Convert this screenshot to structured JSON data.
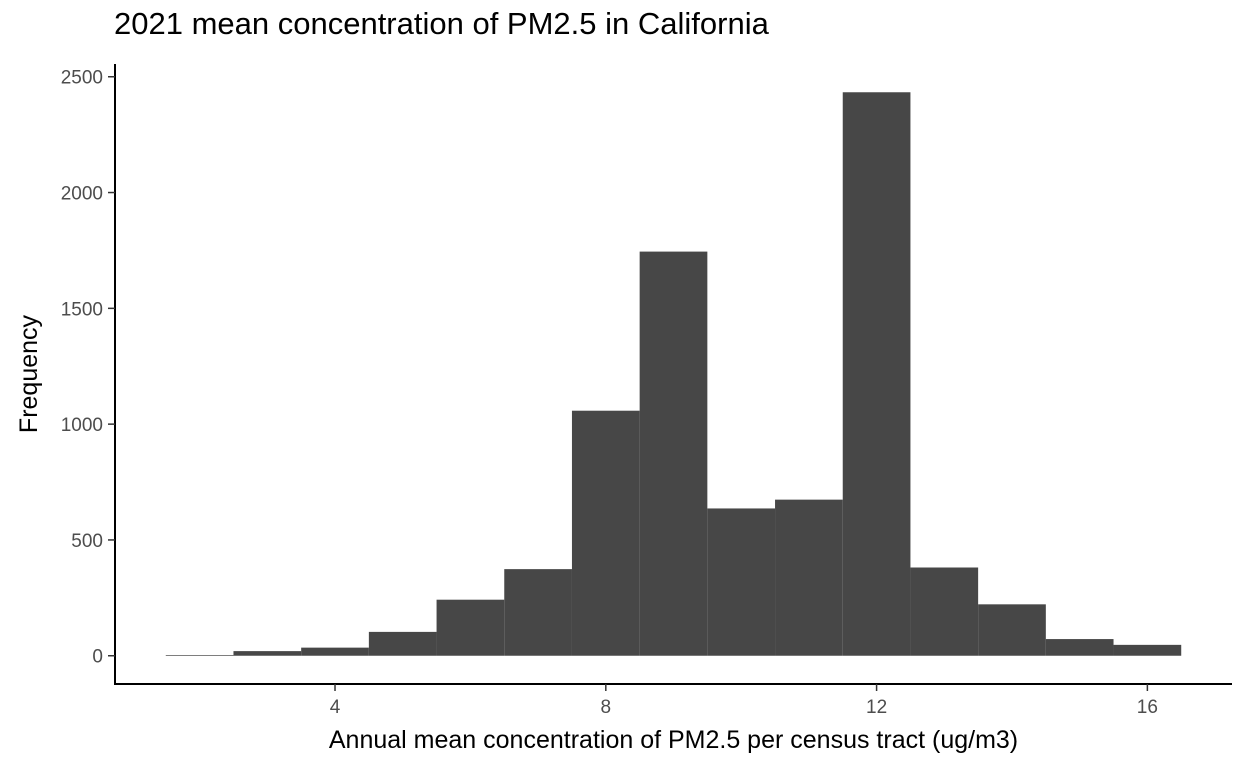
{
  "chart_data": {
    "type": "bar",
    "title": "2021 mean concentration of PM2.5 in California",
    "xlabel": "Annual mean concentration of PM2.5 per census tract (ug/m3)",
    "ylabel": "Frequency",
    "bins": [
      {
        "x_start": 1.5,
        "x_end": 2.5,
        "value": 3
      },
      {
        "x_start": 2.5,
        "x_end": 3.5,
        "value": 20
      },
      {
        "x_start": 3.5,
        "x_end": 4.5,
        "value": 35
      },
      {
        "x_start": 4.5,
        "x_end": 5.5,
        "value": 103
      },
      {
        "x_start": 5.5,
        "x_end": 6.5,
        "value": 242
      },
      {
        "x_start": 6.5,
        "x_end": 7.5,
        "value": 374
      },
      {
        "x_start": 7.5,
        "x_end": 8.5,
        "value": 1058
      },
      {
        "x_start": 8.5,
        "x_end": 9.5,
        "value": 1745
      },
      {
        "x_start": 9.5,
        "x_end": 10.5,
        "value": 636
      },
      {
        "x_start": 10.5,
        "x_end": 11.5,
        "value": 674
      },
      {
        "x_start": 11.5,
        "x_end": 12.5,
        "value": 2433
      },
      {
        "x_start": 12.5,
        "x_end": 13.5,
        "value": 381
      },
      {
        "x_start": 13.5,
        "x_end": 14.5,
        "value": 222
      },
      {
        "x_start": 14.5,
        "x_end": 15.5,
        "value": 72
      },
      {
        "x_start": 15.5,
        "x_end": 16.5,
        "value": 47
      }
    ],
    "xlim": [
      0.75,
      17.25
    ],
    "ylim": [
      -122,
      2555
    ],
    "x_ticks": [
      4,
      8,
      12,
      16
    ],
    "y_ticks": [
      0,
      500,
      1000,
      1500,
      2000,
      2500
    ],
    "grid": false,
    "legend": "none",
    "bar_color": "#474747"
  }
}
